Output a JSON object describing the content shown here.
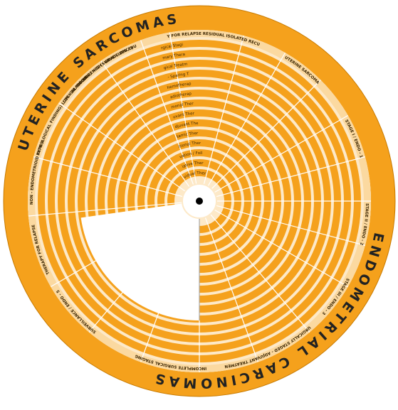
{
  "title_top": "UTERINE SARCOMAS",
  "title_bottom": "ENDOMETRIAL CARCINOMAS",
  "rings": [
    "Surgical Staging",
    "Primary Therapy",
    "Surgical Treatment",
    "Fertility - Sparing Therapy",
    "Chemotherapy",
    "Radiotherapy",
    "Hormonal Therapy",
    "Adjuvant Therapy",
    "Neoadjuvant Therapy",
    "Systemic Therapy",
    "Additional Therapy",
    "Observation / Follow Up",
    "Palliative Therapy",
    "Individual Therapy"
  ],
  "sectors": [
    "RECURRENCE (SURVEILLANCE)",
    "THERAPY FOR RELAPSE RESIDUAL ISOLATED RECURRENCE",
    "UTERINE SARCOMA",
    "STAGE I / ENDO - 1",
    "STAGE II / ENDO - 2",
    "STAGE III / ENDO - 3",
    "SURGICALLY STAGED - ADJUVANT TREATMENT",
    "INCOMPLETE SURGICAL STAGING",
    "SURVEILLANCE / ENDO - 5",
    "THERAPY FOR RELAPSE",
    "NON - ENDOMETRIOID TYPE II",
    "(PATHOLOGICAL FINDING) LOW - GRADE ESS",
    "(PATHOLOGICAL FINDING) HIGH - GRADE ESS / UUS / LMS"
  ]
}
